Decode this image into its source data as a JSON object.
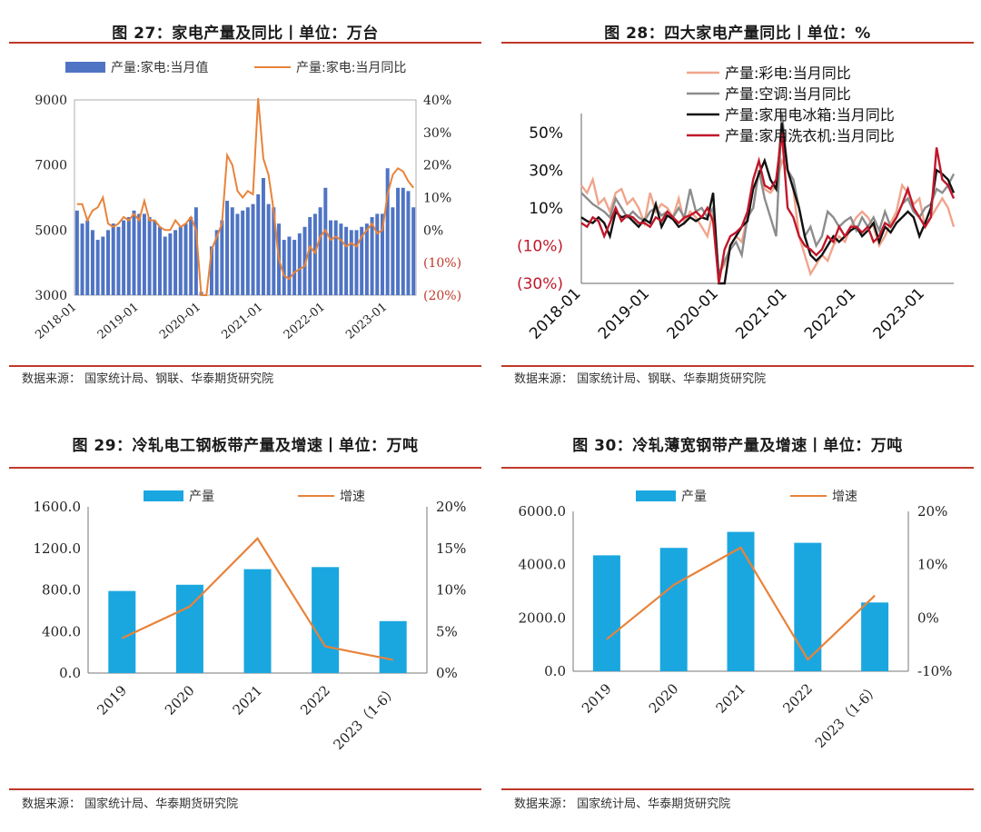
{
  "panels": [
    {
      "title": "图 27：家电产量及同比丨单位：万台",
      "source": "数据来源：  国家统计局、钢联、华泰期货研究院"
    },
    {
      "title": "图 28：四大家电产量同比丨单位：%",
      "source": "数据来源：  国家统计局、钢联、华泰期货研究院"
    },
    {
      "title": "图 29：冷轧电工钢板带产量及增速丨单位：万吨",
      "source": "数据来源：  国家统计局、华泰期货研究院"
    },
    {
      "title": "图 30：冷轧薄宽钢带产量及增速丨单位：万吨",
      "source": "数据来源：  国家统计局、华泰期货研究院"
    }
  ],
  "chart_data": [
    {
      "type": "bar",
      "legend": [
        "产量:家电:当月值",
        "产量:家电:当月同比"
      ],
      "x_tick_labels": [
        "2018-01",
        "2019-01",
        "2020-01",
        "2021-01",
        "2022-01",
        "2023-01"
      ],
      "y_left_ticks": [
        "9000",
        "7000",
        "5000",
        "3000"
      ],
      "y_right_ticks": [
        "40%",
        "30%",
        "20%",
        "10%",
        "0%",
        "(10%)",
        "(20%)"
      ],
      "ylim_left": [
        3000,
        9000
      ],
      "ylim_right": [
        -20,
        40
      ],
      "colors": {
        "bar": "#4f74c4",
        "line": "#e8833a",
        "neg_tick": "#c0392b"
      },
      "bars": [
        5600,
        5200,
        5300,
        5000,
        4700,
        4800,
        5000,
        5200,
        5100,
        5300,
        5400,
        5600,
        5500,
        5500,
        5400,
        5300,
        5100,
        4800,
        4900,
        5000,
        5100,
        5200,
        5400,
        5700,
        3100,
        3000,
        4500,
        5000,
        5300,
        5900,
        5700,
        5500,
        5600,
        5700,
        5800,
        6100,
        6600,
        5800,
        5700,
        5200,
        4700,
        4800,
        4700,
        4900,
        5100,
        5400,
        5500,
        5700,
        6300,
        5300,
        5300,
        5200,
        5100,
        5000,
        5000,
        5100,
        5200,
        5400,
        5500,
        5500,
        6900,
        5700,
        6300,
        6300,
        6200,
        5700
      ],
      "line": [
        8,
        8,
        3,
        6,
        7,
        10,
        2,
        1,
        2,
        4,
        3,
        5,
        3,
        9,
        3,
        3,
        1,
        0,
        0,
        3,
        1,
        2,
        4,
        0,
        -20,
        -20,
        -6,
        -2,
        2,
        23,
        20,
        12,
        10,
        12,
        11,
        42,
        22,
        17,
        6,
        -9,
        -14,
        -15,
        -13,
        -12,
        -11,
        -5,
        -7,
        -2,
        0,
        -3,
        -2,
        -3,
        -5,
        -4,
        -5,
        -2,
        0,
        2,
        -1,
        0,
        11,
        17,
        19,
        18,
        15,
        13
      ]
    },
    {
      "type": "line",
      "legend": [
        "产量:彩电:当月同比",
        "产量:空调:当月同比",
        "产量:家用电冰箱:当月同比",
        "产量:家用洗衣机:当月同比"
      ],
      "x_tick_labels": [
        "2018-01",
        "2019-01",
        "2020-01",
        "2021-01",
        "2022-01",
        "2023-01"
      ],
      "y_ticks": [
        "50%",
        "30%",
        "10%",
        "(10%)",
        "(30%)"
      ],
      "ylim": [
        -30,
        60
      ],
      "series": [
        {
          "name": "产量:彩电:当月同比",
          "color": "#f0a58c",
          "values": [
            22,
            18,
            25,
            12,
            15,
            8,
            18,
            20,
            12,
            15,
            10,
            2,
            18,
            8,
            12,
            10,
            5,
            15,
            2,
            8,
            5,
            0,
            -5,
            8,
            -25,
            -20,
            -10,
            -5,
            -8,
            5,
            10,
            30,
            20,
            18,
            22,
            35,
            30,
            20,
            -5,
            -15,
            -25,
            -20,
            -15,
            -18,
            -10,
            -5,
            -8,
            0,
            5,
            8,
            5,
            0,
            -10,
            -5,
            2,
            8,
            22,
            18,
            12,
            15,
            0,
            5,
            10,
            15,
            10,
            0
          ]
        },
        {
          "name": "产量:空调:当月同比",
          "color": "#8c8c8c",
          "values": [
            18,
            15,
            12,
            10,
            8,
            5,
            15,
            10,
            5,
            8,
            5,
            3,
            8,
            10,
            6,
            8,
            5,
            10,
            5,
            20,
            8,
            10,
            5,
            10,
            -25,
            -18,
            -12,
            -8,
            -15,
            5,
            10,
            30,
            15,
            5,
            -5,
            60,
            30,
            25,
            10,
            -5,
            0,
            -10,
            -5,
            8,
            5,
            0,
            3,
            5,
            -2,
            5,
            0,
            5,
            -2,
            8,
            0,
            5,
            12,
            15,
            8,
            5,
            10,
            12,
            20,
            18,
            22,
            28
          ]
        },
        {
          "name": "产量:家用电冰箱:当月同比",
          "color": "#111111",
          "values": [
            5,
            3,
            2,
            5,
            2,
            -5,
            8,
            5,
            6,
            3,
            0,
            4,
            2,
            12,
            0,
            6,
            4,
            0,
            2,
            5,
            3,
            5,
            4,
            18,
            -40,
            -30,
            -10,
            -5,
            0,
            3,
            20,
            28,
            35,
            25,
            20,
            55,
            30,
            20,
            10,
            -5,
            -15,
            -18,
            -15,
            -10,
            -5,
            -8,
            -5,
            -2,
            0,
            -5,
            -2,
            2,
            -8,
            0,
            -3,
            2,
            5,
            8,
            5,
            -5,
            2,
            10,
            30,
            28,
            25,
            18
          ]
        },
        {
          "name": "产量:家用洗衣机:当月同比",
          "color": "#c0182a",
          "values": [
            2,
            0,
            5,
            3,
            -5,
            2,
            10,
            3,
            6,
            5,
            2,
            2,
            0,
            5,
            3,
            8,
            5,
            2,
            5,
            6,
            8,
            5,
            10,
            3,
            -30,
            -12,
            -5,
            -3,
            0,
            8,
            25,
            35,
            22,
            20,
            25,
            50,
            10,
            5,
            -5,
            -10,
            -12,
            -15,
            -12,
            -5,
            -8,
            0,
            -5,
            0,
            0,
            -3,
            0,
            -8,
            -5,
            2,
            0,
            5,
            12,
            20,
            10,
            5,
            0,
            5,
            42,
            25,
            22,
            15
          ]
        }
      ]
    },
    {
      "type": "bar",
      "legend": [
        "产量",
        "增速"
      ],
      "categories": [
        "2019",
        "2020",
        "2021",
        "2022",
        "2023（1-6）"
      ],
      "y_left_ticks": [
        "1600.0",
        "1200.0",
        "800.0",
        "400.0",
        "0.0"
      ],
      "y_right_ticks": [
        "20%",
        "15%",
        "10%",
        "5%",
        "0%"
      ],
      "ylim_left": [
        0,
        1600
      ],
      "ylim_right": [
        0,
        20
      ],
      "bars": [
        790,
        850,
        1000,
        1020,
        500
      ],
      "line": [
        4.2,
        8.0,
        16.2,
        3.2,
        1.6
      ],
      "colors": {
        "bar": "#1aa7e0",
        "line": "#e8833a"
      }
    },
    {
      "type": "bar",
      "legend": [
        "产量",
        "增速"
      ],
      "categories": [
        "2019",
        "2020",
        "2021",
        "2022",
        "2023（1-6）"
      ],
      "y_left_ticks": [
        "6000.0",
        "4000.0",
        "2000.0",
        "0.0"
      ],
      "y_right_ticks": [
        "20%",
        "10%",
        "0%",
        "-10%"
      ],
      "ylim_left": [
        0,
        6000
      ],
      "ylim_right": [
        -10,
        20
      ],
      "bars": [
        4350,
        4630,
        5230,
        4820,
        2580
      ],
      "line": [
        -4.0,
        6.2,
        13.2,
        -7.8,
        4.2
      ],
      "colors": {
        "bar": "#1aa7e0",
        "line": "#e8833a"
      }
    }
  ]
}
